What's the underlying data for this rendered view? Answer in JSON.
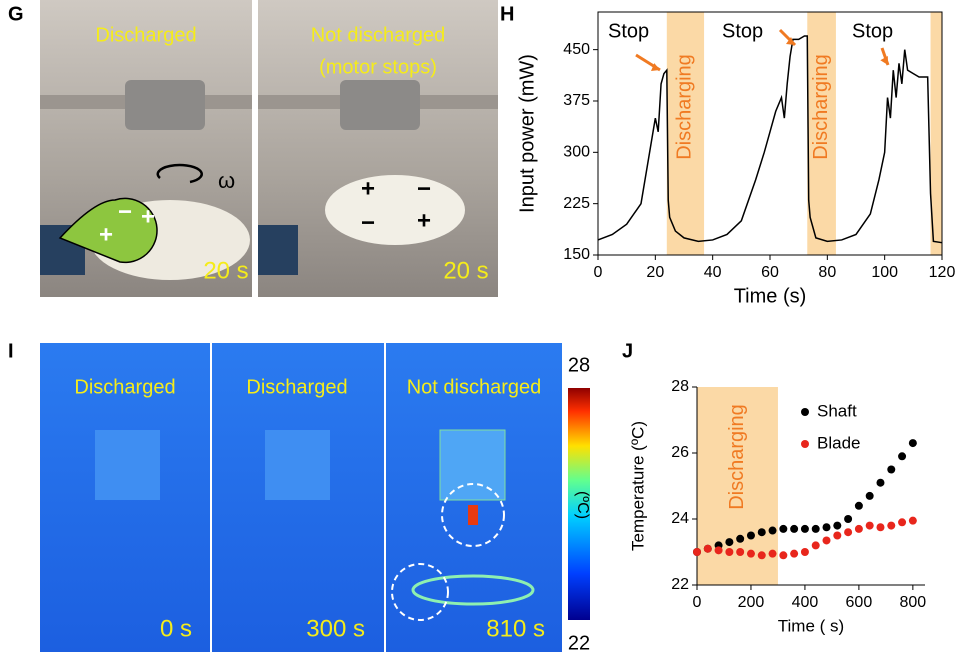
{
  "labels": [
    "G",
    "H",
    "I",
    "J"
  ],
  "photo_g": {
    "captions": [
      "Discharged",
      "Not discharged",
      "(motor stops)"
    ],
    "times": [
      "20 s",
      "20 s"
    ],
    "omega": "ω",
    "charges": [
      "−",
      "+",
      "+",
      "+",
      "−",
      "−",
      "+"
    ]
  },
  "photo_i": {
    "captions": [
      "Discharged",
      "Discharged",
      "Not discharged"
    ],
    "times": [
      "0 s",
      "300 s",
      "810 s"
    ],
    "colorbar_labels": [
      "28",
      "22"
    ],
    "colorbar_unit": "(ºC)"
  },
  "chart_data": [
    {
      "type": "line",
      "xlabel": "Time (s)",
      "ylabel": "Input power (mW)",
      "color": "#000000",
      "x": [
        0,
        5,
        10,
        15,
        18,
        20,
        21,
        22,
        23,
        24,
        24.5,
        25,
        27,
        30,
        35,
        40,
        45,
        50,
        55,
        58,
        60,
        62,
        64,
        65,
        66,
        67,
        68,
        70,
        72,
        73,
        73.5,
        74,
        76,
        80,
        85,
        90,
        95,
        98,
        100,
        101,
        102,
        103,
        104,
        105,
        106,
        107,
        108,
        110,
        112,
        115,
        116,
        117,
        120
      ],
      "values": [
        172,
        180,
        195,
        225,
        300,
        350,
        330,
        400,
        415,
        420,
        230,
        205,
        185,
        175,
        170,
        172,
        180,
        200,
        260,
        300,
        330,
        360,
        380,
        350,
        400,
        440,
        465,
        465,
        470,
        470,
        230,
        205,
        175,
        170,
        172,
        180,
        210,
        260,
        300,
        380,
        350,
        420,
        380,
        430,
        400,
        450,
        420,
        415,
        410,
        410,
        240,
        170,
        168
      ],
      "xlim": [
        0,
        120
      ],
      "ylim": [
        150,
        505
      ],
      "xticks": [
        0,
        20,
        40,
        60,
        80,
        100,
        120
      ],
      "yticks": [
        150,
        225,
        300,
        375,
        450
      ],
      "shaded_spans": [
        [
          24,
          37
        ],
        [
          73,
          83
        ],
        [
          116,
          120
        ]
      ],
      "shade_color": "#fbd9a6",
      "stop_labels": [
        "Stop",
        "Stop",
        "Stop"
      ],
      "span_labels": [
        "Discharging",
        "Discharging"
      ]
    },
    {
      "type": "scatter",
      "xlabel": "Time ( s)",
      "ylabel": "Temperature (ºC)",
      "x": [
        0,
        40,
        80,
        120,
        160,
        200,
        240,
        280,
        320,
        360,
        400,
        440,
        480,
        520,
        560,
        600,
        640,
        680,
        720,
        760,
        800
      ],
      "series": [
        {
          "name": "Shaft",
          "color": "#000000",
          "values": [
            23.0,
            23.1,
            23.2,
            23.3,
            23.4,
            23.5,
            23.6,
            23.65,
            23.7,
            23.7,
            23.7,
            23.7,
            23.75,
            23.8,
            24.0,
            24.4,
            24.7,
            25.1,
            25.5,
            25.9,
            26.3
          ]
        },
        {
          "name": "Blade",
          "color": "#e8261c",
          "values": [
            23.0,
            23.1,
            23.05,
            23.0,
            23.0,
            22.95,
            22.9,
            22.95,
            22.9,
            22.95,
            23.0,
            23.2,
            23.35,
            23.5,
            23.6,
            23.7,
            23.8,
            23.75,
            23.8,
            23.9,
            23.95
          ]
        }
      ],
      "xlim": [
        0,
        845
      ],
      "ylim": [
        22,
        28
      ],
      "xticks": [
        0,
        200,
        400,
        600,
        800
      ],
      "yticks": [
        22,
        24,
        26,
        28
      ],
      "shaded_spans": [
        [
          0,
          300
        ]
      ],
      "shade_color": "#fbd9a6",
      "span_labels": [
        "Discharging"
      ],
      "legend": "upper right"
    }
  ]
}
